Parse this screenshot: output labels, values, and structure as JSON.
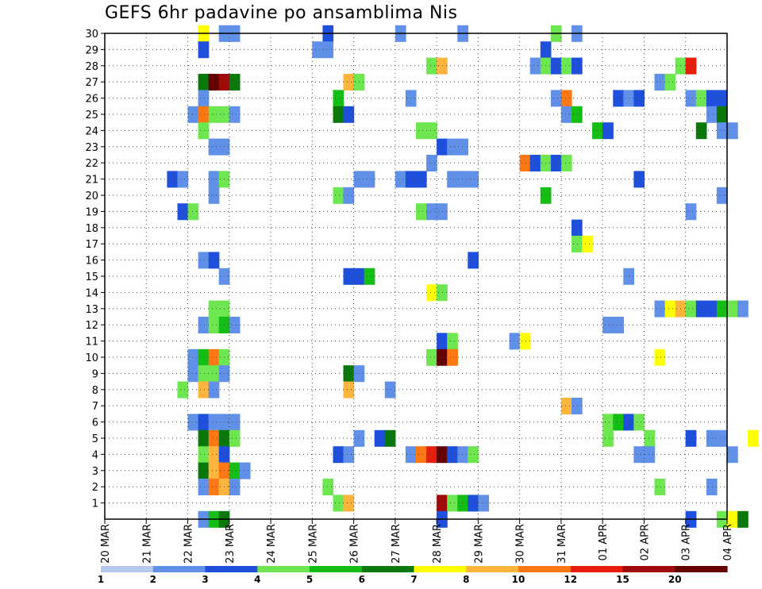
{
  "chart_data": {
    "type": "heatmap",
    "title": "GEFS 6hr padavine po ansamblima Nis",
    "xlabel": "",
    "ylabel": "",
    "x_tick_labels": [
      "20 MAR",
      "21 MAR",
      "22 MAR",
      "23 MAR",
      "24 MAR",
      "25 MAR",
      "26 MAR",
      "27 MAR",
      "28 MAR",
      "29 MAR",
      "30 MAR",
      "31 MAR",
      "01 APR",
      "02 APR",
      "03 APR",
      "04 APR"
    ],
    "y_range": [
      0,
      30
    ],
    "y_ticks": [
      1,
      2,
      3,
      4,
      5,
      6,
      7,
      8,
      9,
      10,
      11,
      12,
      13,
      14,
      15,
      16,
      17,
      18,
      19,
      20,
      21,
      22,
      23,
      24,
      25,
      26,
      27,
      28,
      29,
      30
    ],
    "x_range_days": [
      0,
      15
    ],
    "grid": true,
    "color_levels": [
      1,
      2,
      3,
      4,
      5,
      6,
      7,
      8,
      10,
      12,
      15,
      20
    ],
    "colors": [
      "#b4c8f0",
      "#6090e8",
      "#1e50dc",
      "#6ee650",
      "#14be14",
      "#0a780a",
      "#ffff00",
      "#ffb43c",
      "#ff7814",
      "#e61e0a",
      "#a00a0a",
      "#640000"
    ],
    "legend_labels": [
      "1",
      "2",
      "3",
      "4",
      "5",
      "6",
      "7",
      "8",
      "10",
      "12",
      "15",
      "20"
    ],
    "cells": [
      [
        2.25,
        30,
        6
      ],
      [
        2.75,
        30,
        1
      ],
      [
        3.0,
        30,
        1
      ],
      [
        5.25,
        30,
        2
      ],
      [
        7.0,
        30,
        1
      ],
      [
        8.5,
        30,
        1
      ],
      [
        10.75,
        30,
        3
      ],
      [
        11.25,
        30,
        1
      ],
      [
        2.25,
        29,
        2
      ],
      [
        5.0,
        29,
        1
      ],
      [
        5.25,
        29,
        1
      ],
      [
        10.5,
        29,
        2
      ],
      [
        7.75,
        28,
        3
      ],
      [
        8.0,
        28,
        7
      ],
      [
        10.25,
        28,
        1
      ],
      [
        10.5,
        28,
        3
      ],
      [
        10.75,
        28,
        2
      ],
      [
        11.0,
        28,
        3
      ],
      [
        11.25,
        28,
        2
      ],
      [
        13.75,
        28,
        3
      ],
      [
        14.0,
        28,
        9
      ],
      [
        2.25,
        27,
        5
      ],
      [
        2.5,
        27,
        11
      ],
      [
        2.75,
        27,
        10
      ],
      [
        3.0,
        27,
        5
      ],
      [
        5.75,
        27,
        7
      ],
      [
        6.0,
        27,
        3
      ],
      [
        13.25,
        27,
        1
      ],
      [
        13.5,
        27,
        3
      ],
      [
        2.25,
        26,
        1
      ],
      [
        5.5,
        26,
        4
      ],
      [
        7.25,
        26,
        1
      ],
      [
        10.75,
        26,
        1
      ],
      [
        11.0,
        26,
        8
      ],
      [
        12.25,
        26,
        2
      ],
      [
        12.5,
        26,
        1
      ],
      [
        12.75,
        26,
        2
      ],
      [
        14.0,
        26,
        1
      ],
      [
        14.25,
        26,
        3
      ],
      [
        14.5,
        26,
        2
      ],
      [
        14.75,
        26,
        2
      ],
      [
        2.0,
        25,
        1
      ],
      [
        2.25,
        25,
        8
      ],
      [
        2.5,
        25,
        3
      ],
      [
        2.75,
        25,
        3
      ],
      [
        3.0,
        25,
        1
      ],
      [
        5.5,
        25,
        5
      ],
      [
        5.75,
        25,
        2
      ],
      [
        11.0,
        25,
        1
      ],
      [
        11.25,
        25,
        4
      ],
      [
        14.5,
        25,
        1
      ],
      [
        14.75,
        25,
        5
      ],
      [
        2.25,
        24,
        3
      ],
      [
        7.5,
        24,
        3
      ],
      [
        7.75,
        24,
        3
      ],
      [
        11.75,
        24,
        4
      ],
      [
        12.0,
        24,
        2
      ],
      [
        14.25,
        24,
        5
      ],
      [
        14.75,
        24,
        1
      ],
      [
        15.0,
        24,
        1
      ],
      [
        2.5,
        23,
        1
      ],
      [
        2.75,
        23,
        1
      ],
      [
        8.0,
        23,
        2
      ],
      [
        8.25,
        23,
        1
      ],
      [
        8.5,
        23,
        1
      ],
      [
        7.75,
        22,
        1
      ],
      [
        10.0,
        22,
        8
      ],
      [
        10.25,
        22,
        2
      ],
      [
        10.5,
        22,
        3
      ],
      [
        10.75,
        22,
        2
      ],
      [
        11.0,
        22,
        3
      ],
      [
        1.5,
        21,
        2
      ],
      [
        1.75,
        21,
        1
      ],
      [
        2.5,
        21,
        1
      ],
      [
        2.75,
        21,
        3
      ],
      [
        6.0,
        21,
        1
      ],
      [
        6.25,
        21,
        1
      ],
      [
        7.0,
        21,
        1
      ],
      [
        7.25,
        21,
        2
      ],
      [
        7.5,
        21,
        2
      ],
      [
        8.25,
        21,
        1
      ],
      [
        8.5,
        21,
        1
      ],
      [
        8.75,
        21,
        1
      ],
      [
        12.75,
        21,
        2
      ],
      [
        2.5,
        20,
        1
      ],
      [
        5.5,
        20,
        3
      ],
      [
        5.75,
        20,
        1
      ],
      [
        10.5,
        20,
        4
      ],
      [
        14.75,
        20,
        1
      ],
      [
        1.75,
        19,
        2
      ],
      [
        2.0,
        19,
        3
      ],
      [
        7.5,
        19,
        3
      ],
      [
        7.75,
        19,
        1
      ],
      [
        8.0,
        19,
        1
      ],
      [
        14.0,
        19,
        1
      ],
      [
        11.25,
        18,
        2
      ],
      [
        11.25,
        17,
        3
      ],
      [
        11.5,
        17,
        6
      ],
      [
        2.25,
        16,
        1
      ],
      [
        2.5,
        16,
        2
      ],
      [
        8.75,
        16,
        2
      ],
      [
        2.75,
        15,
        1
      ],
      [
        5.75,
        15,
        2
      ],
      [
        6.0,
        15,
        2
      ],
      [
        6.25,
        15,
        4
      ],
      [
        12.5,
        15,
        1
      ],
      [
        7.75,
        14,
        6
      ],
      [
        8.0,
        14,
        3
      ],
      [
        2.5,
        13,
        3
      ],
      [
        2.75,
        13,
        3
      ],
      [
        13.25,
        13,
        1
      ],
      [
        13.5,
        13,
        6
      ],
      [
        13.75,
        13,
        7
      ],
      [
        14.0,
        13,
        3
      ],
      [
        14.25,
        13,
        2
      ],
      [
        14.5,
        13,
        2
      ],
      [
        14.75,
        13,
        4
      ],
      [
        15.0,
        13,
        3
      ],
      [
        15.25,
        13,
        1
      ],
      [
        2.25,
        12,
        1
      ],
      [
        2.5,
        12,
        3
      ],
      [
        2.75,
        12,
        4
      ],
      [
        3.0,
        12,
        1
      ],
      [
        12.0,
        12,
        1
      ],
      [
        12.25,
        12,
        1
      ],
      [
        8.0,
        11,
        2
      ],
      [
        8.25,
        11,
        3
      ],
      [
        9.75,
        11,
        1
      ],
      [
        10.0,
        11,
        6
      ],
      [
        2.0,
        10,
        1
      ],
      [
        2.25,
        10,
        4
      ],
      [
        2.5,
        10,
        8
      ],
      [
        2.75,
        10,
        3
      ],
      [
        7.75,
        10,
        3
      ],
      [
        8.0,
        10,
        11
      ],
      [
        8.25,
        10,
        8
      ],
      [
        13.25,
        10,
        6
      ],
      [
        2.0,
        9,
        1
      ],
      [
        2.25,
        9,
        3
      ],
      [
        2.5,
        9,
        3
      ],
      [
        2.75,
        9,
        1
      ],
      [
        5.75,
        9,
        5
      ],
      [
        6.0,
        9,
        1
      ],
      [
        1.75,
        8,
        3
      ],
      [
        2.25,
        8,
        7
      ],
      [
        2.5,
        8,
        1
      ],
      [
        5.75,
        8,
        7
      ],
      [
        6.75,
        8,
        1
      ],
      [
        11.0,
        7,
        7
      ],
      [
        11.25,
        7,
        1
      ],
      [
        2.0,
        6,
        1
      ],
      [
        2.25,
        6,
        2
      ],
      [
        2.5,
        6,
        1
      ],
      [
        2.75,
        6,
        1
      ],
      [
        3.0,
        6,
        1
      ],
      [
        12.0,
        6,
        3
      ],
      [
        12.25,
        6,
        4
      ],
      [
        12.5,
        6,
        2
      ],
      [
        12.75,
        6,
        3
      ],
      [
        2.25,
        5,
        5
      ],
      [
        2.5,
        5,
        8
      ],
      [
        2.75,
        5,
        5
      ],
      [
        3.0,
        5,
        3
      ],
      [
        6.0,
        5,
        1
      ],
      [
        6.5,
        5,
        2
      ],
      [
        6.75,
        5,
        5
      ],
      [
        12.0,
        5,
        3
      ],
      [
        13.0,
        5,
        3
      ],
      [
        14.0,
        5,
        2
      ],
      [
        14.5,
        5,
        1
      ],
      [
        14.75,
        5,
        1
      ],
      [
        15.5,
        5,
        6
      ],
      [
        2.25,
        4,
        3
      ],
      [
        2.5,
        4,
        7
      ],
      [
        2.75,
        4,
        2
      ],
      [
        5.5,
        4,
        2
      ],
      [
        5.75,
        4,
        1
      ],
      [
        7.25,
        4,
        1
      ],
      [
        7.5,
        4,
        8
      ],
      [
        7.75,
        4,
        9
      ],
      [
        8.0,
        4,
        11
      ],
      [
        8.25,
        4,
        2
      ],
      [
        8.5,
        4,
        1
      ],
      [
        8.75,
        4,
        3
      ],
      [
        12.75,
        4,
        1
      ],
      [
        13.0,
        4,
        1
      ],
      [
        15.0,
        4,
        1
      ],
      [
        2.25,
        3,
        5
      ],
      [
        2.5,
        3,
        7
      ],
      [
        2.75,
        3,
        8
      ],
      [
        3.0,
        3,
        4
      ],
      [
        3.25,
        3,
        1
      ],
      [
        2.25,
        2,
        1
      ],
      [
        2.5,
        2,
        8
      ],
      [
        2.75,
        2,
        7
      ],
      [
        3.0,
        2,
        1
      ],
      [
        5.25,
        2,
        3
      ],
      [
        13.25,
        2,
        3
      ],
      [
        14.5,
        2,
        1
      ],
      [
        5.5,
        1,
        3
      ],
      [
        5.75,
        1,
        7
      ],
      [
        8.0,
        1,
        10
      ],
      [
        8.25,
        1,
        3
      ],
      [
        8.5,
        1,
        4
      ],
      [
        8.75,
        1,
        2
      ],
      [
        9.0,
        1,
        1
      ],
      [
        2.25,
        0,
        1
      ],
      [
        2.5,
        0,
        4
      ],
      [
        2.75,
        0,
        5
      ],
      [
        8.0,
        0,
        2
      ],
      [
        14.0,
        0,
        2
      ],
      [
        14.75,
        0,
        3
      ],
      [
        15.0,
        0,
        6
      ],
      [
        15.25,
        0,
        5
      ]
    ]
  }
}
